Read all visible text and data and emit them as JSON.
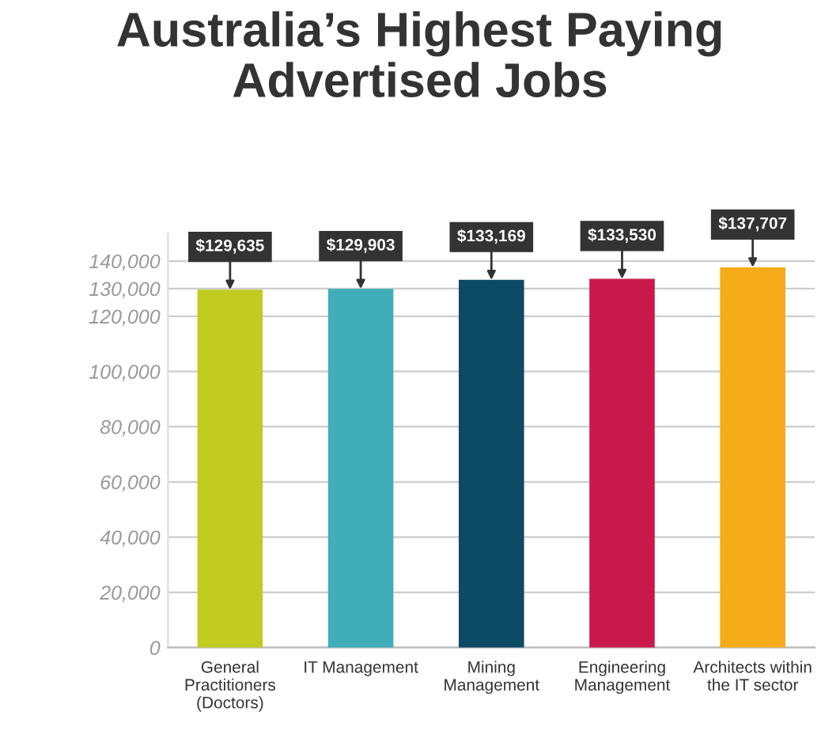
{
  "chart_data": {
    "type": "bar",
    "title": "Australia’s Highest Paying\nAdvertised Jobs",
    "categories": [
      "General\nPractitioners\n(Doctors)",
      "IT Management",
      "Mining\nManagement",
      "Engineering\nManagement",
      "Architects within\nthe IT sector"
    ],
    "values": [
      129635,
      129903,
      133169,
      133530,
      137707
    ],
    "colors": [
      "#c2cb22",
      "#41adb8",
      "#0d4a66",
      "#c8194a",
      "#f5ac18"
    ],
    "value_labels": [
      "$129,635",
      "$129,903",
      "$133,169",
      "$133,530",
      "$137,707"
    ],
    "ylim": [
      0,
      150000
    ],
    "yticks": [
      {
        "value": 0,
        "label": "0"
      },
      {
        "value": 20000,
        "label": "20,000"
      },
      {
        "value": 40000,
        "label": "40,000"
      },
      {
        "value": 60000,
        "label": "60,000"
      },
      {
        "value": 80000,
        "label": "80,000"
      },
      {
        "value": 100000,
        "label": "100,000"
      },
      {
        "value": 120000,
        "label": "120,000"
      },
      {
        "value": 130000,
        "label": "130,000"
      },
      {
        "value": 140000,
        "label": "140,000"
      }
    ],
    "grid": "y",
    "legend": false
  }
}
